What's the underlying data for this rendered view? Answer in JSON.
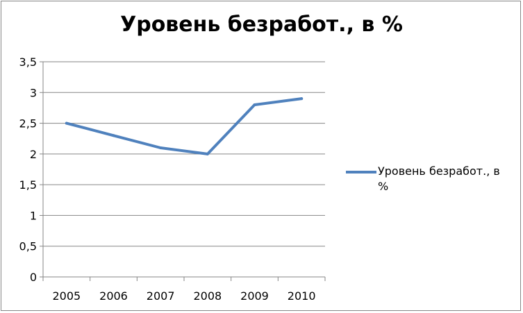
{
  "chart_data": {
    "type": "line",
    "title": "Уровень безработ., в %",
    "categories": [
      "2005",
      "2006",
      "2007",
      "2008",
      "2009",
      "2010"
    ],
    "series": [
      {
        "name": "Уровень безработ., в %",
        "values": [
          2.5,
          2.3,
          2.1,
          2.0,
          2.8,
          2.9
        ],
        "color": "#4F81BD"
      }
    ],
    "ylim": [
      0,
      3.5
    ],
    "yticks": [
      "0",
      "0,5",
      "1",
      "1,5",
      "2",
      "2,5",
      "3",
      "3,5"
    ],
    "grid": true,
    "legend_position": "right"
  }
}
